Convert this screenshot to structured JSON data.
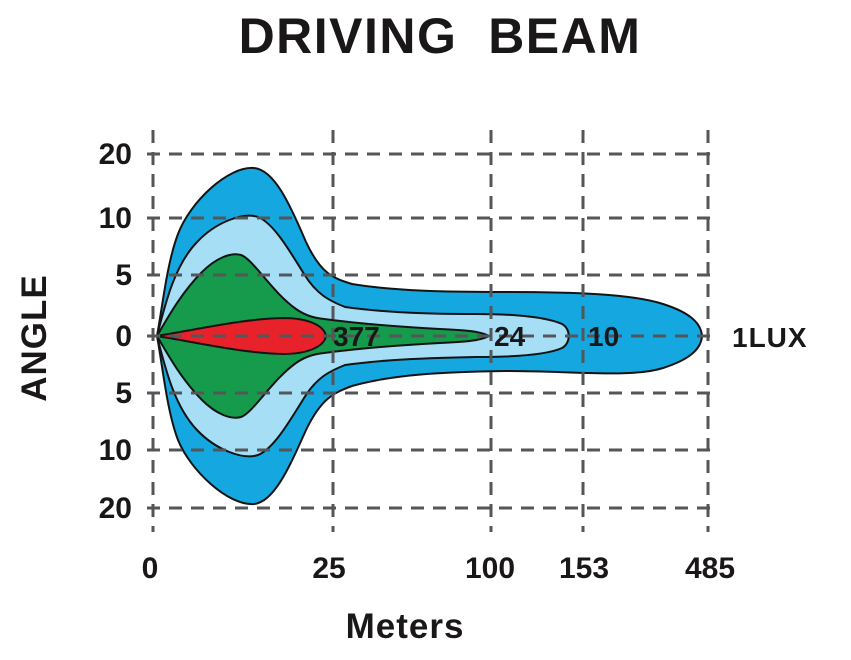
{
  "title": "DRIVING  BEAM",
  "chart_data": {
    "type": "area",
    "subtype": "isolux-beam-pattern",
    "title": "DRIVING BEAM",
    "xlabel": "Meters",
    "ylabel": "ANGLE",
    "x_tick_labels": [
      "0",
      "25",
      "100",
      "153",
      "485"
    ],
    "y_tick_labels": [
      "20",
      "10",
      "5",
      "0",
      "5",
      "10",
      "20"
    ],
    "grid": "dashed",
    "legend_position": "inline-labels-on-beam-axis",
    "zones": [
      {
        "lux": 1,
        "label": "1LUX",
        "reach_m": 485,
        "max_up_deg": 18,
        "max_down_deg": 20,
        "color": "#14a7e0"
      },
      {
        "lux": 10,
        "label": "10",
        "reach_m": 153,
        "max_up_deg": 10,
        "max_down_deg": 10,
        "color": "#a6def6"
      },
      {
        "lux": 24,
        "label": "24",
        "reach_m": 100,
        "max_up_deg": 7,
        "max_down_deg": 7,
        "color": "#159b4b"
      },
      {
        "lux": 377,
        "label": "377",
        "reach_m": 25,
        "max_up_deg": 1.5,
        "max_down_deg": 1.5,
        "color": "#e7222a"
      }
    ],
    "colors": {
      "grid": "#55565a",
      "text": "#1a1719",
      "outline": "#141414",
      "background": "#ffffff"
    }
  }
}
